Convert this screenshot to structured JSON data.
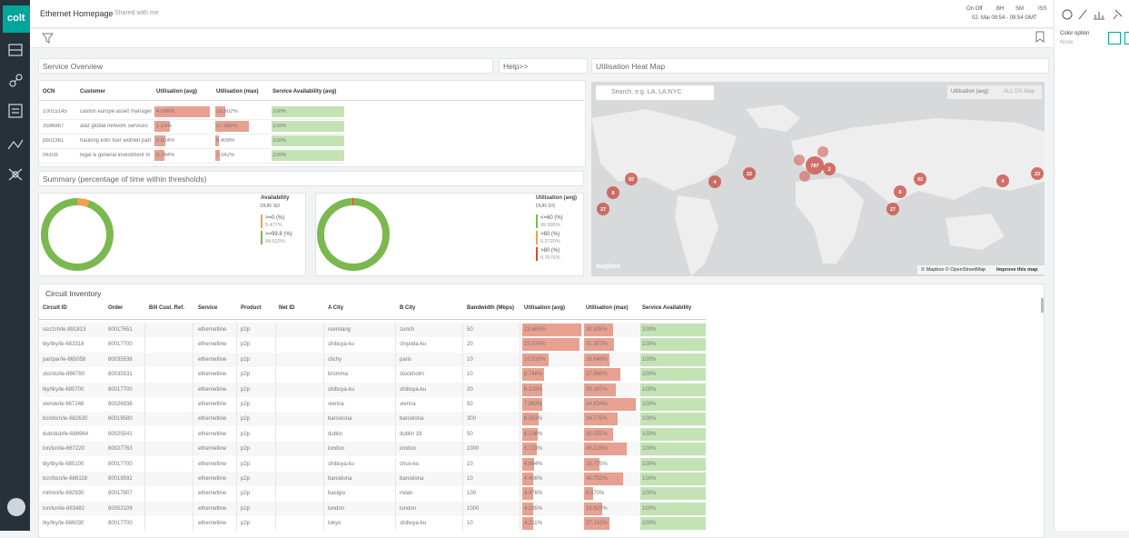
{
  "header": {
    "title": "Ethernet Homepage",
    "shared": "Shared with me",
    "toggle": "On Off",
    "bh": "BH",
    "sm": "SM",
    "iss": "ISS",
    "time": "02. Mai 09:54 - 09:54 GMT"
  },
  "sidebar": {
    "logo": "colt"
  },
  "right_panel": {
    "label": "Color option",
    "value": "None"
  },
  "service_overview": {
    "title": "Service Overview",
    "help": "Help>>",
    "columns": [
      "OCN",
      "Customer",
      "Utilisation (avg)",
      "Utilisation (max)",
      "Service Availability (avg)"
    ],
    "rows": [
      [
        "10015145",
        "caxton europe asset manager",
        "4.098%",
        "16.602%",
        "100%"
      ],
      [
        "3596887",
        "at&t global network services",
        "1.15%",
        "57.963%",
        "100%"
      ],
      [
        "pb02361",
        "hauking köln fuer wohlen part",
        "0.814%",
        "6.409%",
        "100%"
      ],
      [
        "06108",
        "legal & general investment m",
        "0.764%",
        "7.042%",
        "100%"
      ]
    ]
  },
  "summary": {
    "title": "Summary (percentage of time within thresholds)",
    "availability": {
      "title": "Availability",
      "subtitle": "DUR SD",
      "items": [
        {
          "label": ">=0 (%)",
          "value": "5.477%",
          "color": "#f0a050"
        },
        {
          "label": ">=99.8 (%)",
          "value": "94.523%",
          "color": "#7bb84f"
        }
      ]
    },
    "utilisation": {
      "title": "Utilisation (avg)",
      "subtitle": "DUR DS",
      "items": [
        {
          "label": "<=60 (%)",
          "value": "99.995%",
          "color": "#7bb84f"
        },
        {
          "label": ">60 (%)",
          "value": "0.2720%",
          "color": "#f0a050"
        },
        {
          "label": ">80 (%)",
          "value": "0.7676%",
          "color": "#d9472b"
        }
      ]
    }
  },
  "heat_map": {
    "title": "Utilisation Heat Map",
    "search": "Search, e.g. LA, LA:NYC",
    "metric": "Utilisation (avg)",
    "scope": "ALL DS Map",
    "attribution": "© Mapbox © OpenStreetMap",
    "improve": "Improve this map",
    "logo": "mapbox",
    "bubbles": [
      "92",
      "4",
      "22",
      "8",
      "27",
      "787",
      "2",
      "92",
      "8",
      "27",
      "4",
      "23"
    ]
  },
  "circuit_inventory": {
    "title": "Circuit Inventory",
    "columns": [
      "Circuit ID",
      "Order",
      "Bill Cust. Ref.",
      "Service",
      "Product",
      "Net ID",
      "A City",
      "B City",
      "Bandwidth (Mbps)",
      "Utilisation (avg)",
      "Utilisation (max)",
      "Service Availability"
    ],
    "rows": [
      [
        "ssc/zrh/le-891813",
        "80017651",
        "",
        "ethernetline",
        "p2p",
        "",
        "ruemlang",
        "zurich",
        "50",
        "23.685%",
        "30.505%",
        "100%"
      ],
      [
        "tky/tky/le-683318",
        "80017700",
        "",
        "ethernetline",
        "p2p",
        "",
        "shibuya-ku",
        "chiyoda-ku",
        "20",
        "23.076%",
        "31.357%",
        "100%"
      ],
      [
        "par/par/le-665058",
        "80035536",
        "",
        "ethernetline",
        "p2p",
        "",
        "clichy",
        "paris",
        "10",
        "10.510%",
        "26.649%",
        "100%"
      ],
      [
        "sto/sto/le-886780",
        "80035531",
        "",
        "ethernetline",
        "p2p",
        "",
        "bromma",
        "stockholm",
        "10",
        "8.748%",
        "37.960%",
        "100%"
      ],
      [
        "tky/tky/le-690700",
        "80017700",
        "",
        "ethernetline",
        "p2p",
        "",
        "shibuya-ku",
        "shibuya-ku",
        "20",
        "8.103%",
        "33.167%",
        "100%"
      ],
      [
        "vie/vie/le-667248",
        "80026938",
        "",
        "ethernetline",
        "p2p",
        "",
        "vienna",
        "vienna",
        "50",
        "7.962%",
        "54.634%",
        "100%"
      ],
      [
        "bcn/bcn/le-682630",
        "80019580",
        "",
        "ethernetline",
        "p2p",
        "",
        "barcelona",
        "barcelona",
        "300",
        "6.561%",
        "34.775%",
        "100%"
      ],
      [
        "dub/dub/le-686964",
        "80025541",
        "",
        "ethernetline",
        "p2p",
        "",
        "dublin",
        "dublin 18",
        "50",
        "6.136%",
        "30.055%",
        "100%"
      ],
      [
        "lon/lon/le-667220",
        "80027763",
        "",
        "ethernetline",
        "p2p",
        "",
        "london",
        "london",
        "1000",
        "5.723%",
        "45.228%",
        "100%"
      ],
      [
        "tky/tky/le-685100",
        "80017700",
        "",
        "ethernetline",
        "p2p",
        "",
        "shibuya-ku",
        "chuo-ku",
        "10",
        "4.884%",
        "15.775%",
        "100%"
      ],
      [
        "bcn/bcn/le-686118",
        "80019592",
        "",
        "ethernetline",
        "p2p",
        "",
        "barcelona",
        "barcelona",
        "10",
        "4.436%",
        "40.753%",
        "100%"
      ],
      [
        "mil/mil/le-692930",
        "80017807",
        "",
        "ethernetline",
        "p2p",
        "",
        "baslgio",
        "milan",
        "100",
        "4.476%",
        "9.070%",
        "100%"
      ],
      [
        "lon/lon/le-683482",
        "80052109",
        "",
        "ethernetline",
        "p2p",
        "",
        "london",
        "london",
        "1000",
        "4.195%",
        "18.623%",
        "100%"
      ],
      [
        "tky/tky/le-686030",
        "80017700",
        "",
        "ethernetline",
        "p2p",
        "",
        "tokyo",
        "shibuya-ku",
        "10",
        "4.211%",
        "27.142%",
        "100%"
      ]
    ]
  }
}
